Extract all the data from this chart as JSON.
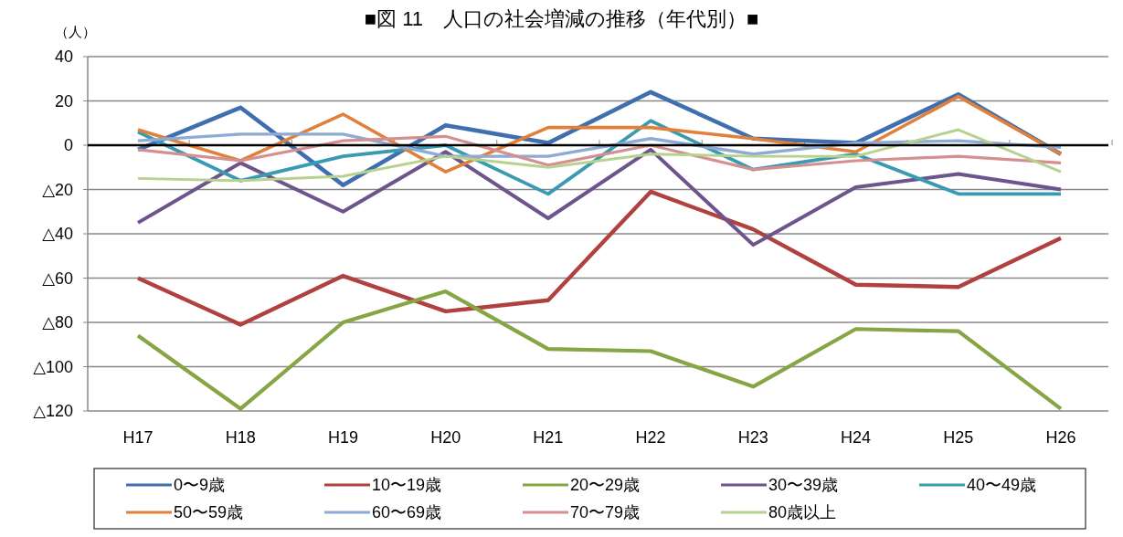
{
  "chart_data": {
    "type": "line",
    "title": "■図 11　人口の社会増減の推移（年代別）■",
    "ylabel": "（人）",
    "categories": [
      "H17",
      "H18",
      "H19",
      "H20",
      "H21",
      "H22",
      "H23",
      "H24",
      "H25",
      "H26"
    ],
    "ylim": [
      -120,
      40
    ],
    "yticks": [
      40,
      20,
      0,
      {
        "value": -20,
        "label": "△20"
      },
      {
        "value": -40,
        "label": "△40"
      },
      {
        "value": -60,
        "label": "△60"
      },
      {
        "value": -80,
        "label": "△80"
      },
      {
        "value": -100,
        "label": "△100"
      },
      {
        "value": -120,
        "label": "△120"
      }
    ],
    "grid": "y",
    "legend": "bottom",
    "marker": "none",
    "line_style": "solid",
    "series": [
      {
        "name": "0〜9歳",
        "color": "#3f6fae",
        "values": [
          -2,
          17,
          -18,
          9,
          1,
          24,
          3,
          1,
          23,
          -4
        ]
      },
      {
        "name": "10〜19歳",
        "color": "#b0413e",
        "values": [
          -60,
          -81,
          -59,
          -75,
          -70,
          -21,
          -38,
          -63,
          -64,
          -42
        ]
      },
      {
        "name": "20〜29歳",
        "color": "#86a544",
        "values": [
          -86,
          -119,
          -80,
          -66,
          -92,
          -93,
          -109,
          -83,
          -84,
          -119
        ]
      },
      {
        "name": "30〜39歳",
        "color": "#6e548d",
        "values": [
          -35,
          -8,
          -30,
          -3,
          -33,
          -2,
          -45,
          -19,
          -13,
          -20
        ]
      },
      {
        "name": "40〜49歳",
        "color": "#3a9ab2",
        "values": [
          6,
          -16,
          -5,
          0,
          -22,
          11,
          -11,
          -4,
          -22,
          -22
        ]
      },
      {
        "name": "50〜59歳",
        "color": "#e0803a",
        "values": [
          7,
          -7,
          14,
          -12,
          8,
          8,
          3,
          -3,
          22,
          -4
        ]
      },
      {
        "name": "60〜69歳",
        "color": "#8eaad6",
        "values": [
          2,
          5,
          5,
          -5,
          -5,
          3,
          -4,
          1,
          2,
          -1
        ]
      },
      {
        "name": "70〜79歳",
        "color": "#d58f8f",
        "values": [
          -2,
          -7,
          2,
          4,
          -9,
          0,
          -11,
          -7,
          -5,
          -8
        ]
      },
      {
        "name": "80歳以上",
        "color": "#b7d28f",
        "values": [
          -15,
          -16,
          -14,
          -5,
          -10,
          -4,
          -5,
          -5,
          7,
          -12
        ]
      }
    ]
  }
}
